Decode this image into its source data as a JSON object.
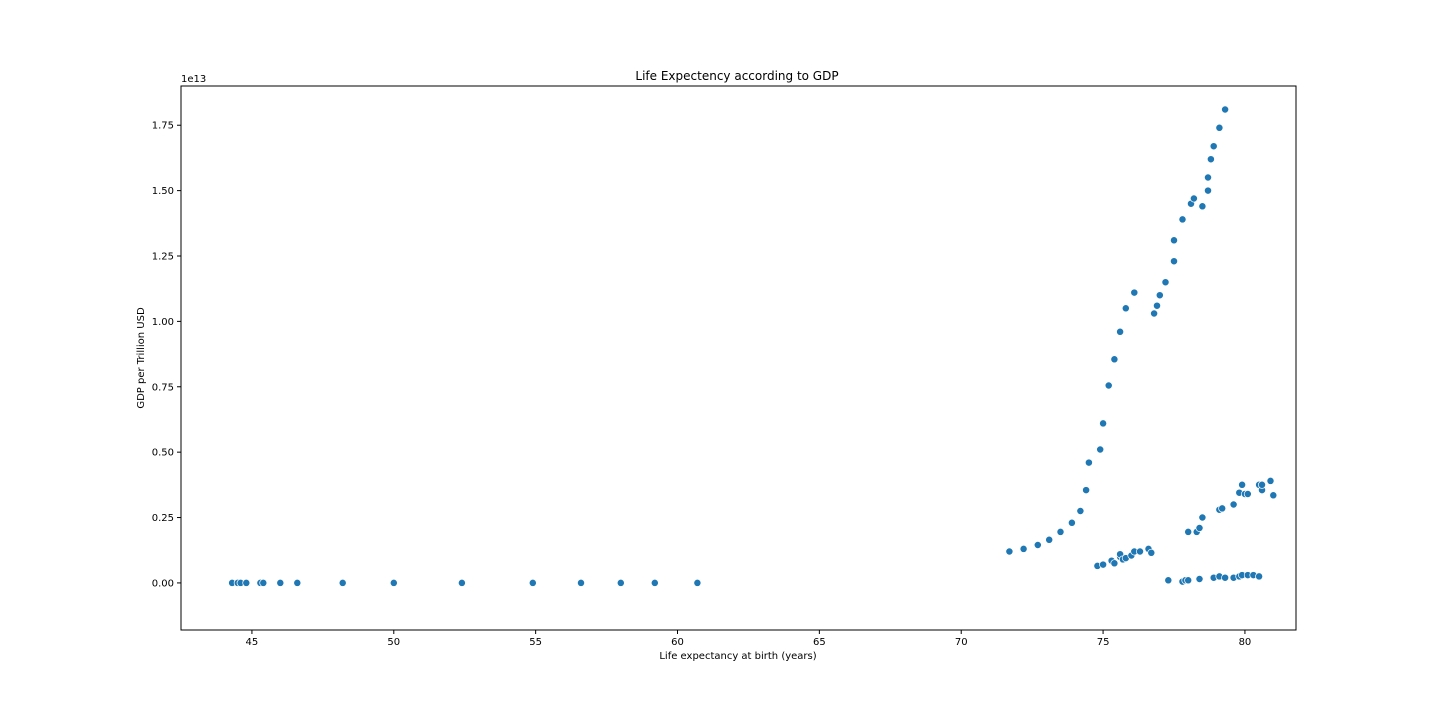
{
  "chart_data": {
    "type": "scatter",
    "title": "Life Expectency according to GDP",
    "xlabel": "Life expectancy at birth (years)",
    "ylabel": "GDP per Trillion USD",
    "y_offset_label": "1e13",
    "xlim": [
      42.5,
      81.8
    ],
    "ylim": [
      -0.18,
      1.9
    ],
    "y_scale_factor": 10000000000000.0,
    "xticks": [
      45,
      50,
      55,
      60,
      65,
      70,
      75,
      80
    ],
    "xtick_labels": [
      "45",
      "50",
      "55",
      "60",
      "65",
      "70",
      "75",
      "80"
    ],
    "yticks": [
      0,
      0.25,
      0.5,
      0.75,
      1.0,
      1.25,
      1.5,
      1.75
    ],
    "ytick_labels": [
      "0.00",
      "0.25",
      "0.50",
      "0.75",
      "1.00",
      "1.25",
      "1.50",
      "1.75"
    ],
    "grid": false,
    "color": "#1f77b4",
    "points": [
      [
        44.3,
        0.0
      ],
      [
        44.5,
        0.0
      ],
      [
        44.6,
        0.0
      ],
      [
        44.8,
        0.0
      ],
      [
        45.3,
        0.0
      ],
      [
        45.4,
        0.0
      ],
      [
        46.0,
        0.0
      ],
      [
        46.6,
        0.0
      ],
      [
        48.2,
        0.0
      ],
      [
        50.0,
        0.0
      ],
      [
        52.4,
        0.0
      ],
      [
        54.9,
        0.0
      ],
      [
        56.6,
        0.0
      ],
      [
        58.0,
        0.0
      ],
      [
        59.2,
        0.0
      ],
      [
        60.7,
        0.0
      ],
      [
        71.7,
        0.12
      ],
      [
        72.2,
        0.13
      ],
      [
        72.7,
        0.145
      ],
      [
        73.1,
        0.165
      ],
      [
        73.5,
        0.195
      ],
      [
        73.9,
        0.23
      ],
      [
        74.2,
        0.275
      ],
      [
        74.4,
        0.355
      ],
      [
        74.5,
        0.46
      ],
      [
        74.9,
        0.51
      ],
      [
        75.0,
        0.61
      ],
      [
        75.2,
        0.755
      ],
      [
        75.4,
        0.855
      ],
      [
        75.6,
        0.96
      ],
      [
        75.8,
        1.05
      ],
      [
        76.1,
        1.11
      ],
      [
        76.8,
        1.03
      ],
      [
        76.9,
        1.06
      ],
      [
        77.0,
        1.1
      ],
      [
        77.2,
        1.15
      ],
      [
        77.5,
        1.23
      ],
      [
        77.5,
        1.31
      ],
      [
        77.8,
        1.39
      ],
      [
        78.1,
        1.45
      ],
      [
        78.2,
        1.47
      ],
      [
        78.5,
        1.44
      ],
      [
        78.7,
        1.5
      ],
      [
        78.7,
        1.55
      ],
      [
        78.8,
        1.62
      ],
      [
        78.9,
        1.67
      ],
      [
        79.1,
        1.74
      ],
      [
        79.3,
        1.81
      ],
      [
        74.8,
        0.065
      ],
      [
        75.0,
        0.07
      ],
      [
        75.3,
        0.085
      ],
      [
        75.4,
        0.075
      ],
      [
        75.6,
        0.1
      ],
      [
        75.6,
        0.11
      ],
      [
        75.7,
        0.09
      ],
      [
        75.8,
        0.095
      ],
      [
        76.0,
        0.105
      ],
      [
        76.1,
        0.12
      ],
      [
        76.3,
        0.12
      ],
      [
        76.6,
        0.13
      ],
      [
        76.7,
        0.115
      ],
      [
        78.0,
        0.195
      ],
      [
        78.3,
        0.195
      ],
      [
        78.4,
        0.21
      ],
      [
        78.5,
        0.25
      ],
      [
        79.1,
        0.28
      ],
      [
        79.2,
        0.285
      ],
      [
        79.6,
        0.3
      ],
      [
        79.8,
        0.345
      ],
      [
        79.9,
        0.375
      ],
      [
        80.0,
        0.34
      ],
      [
        80.1,
        0.34
      ],
      [
        80.5,
        0.375
      ],
      [
        80.6,
        0.355
      ],
      [
        80.6,
        0.375
      ],
      [
        80.9,
        0.39
      ],
      [
        81.0,
        0.335
      ],
      [
        77.3,
        0.01
      ],
      [
        77.8,
        0.005
      ],
      [
        77.9,
        0.01
      ],
      [
        78.0,
        0.01
      ],
      [
        78.4,
        0.015
      ],
      [
        78.9,
        0.02
      ],
      [
        79.1,
        0.025
      ],
      [
        79.3,
        0.02
      ],
      [
        79.6,
        0.02
      ],
      [
        79.8,
        0.025
      ],
      [
        79.9,
        0.03
      ],
      [
        80.1,
        0.03
      ],
      [
        80.3,
        0.03
      ],
      [
        80.5,
        0.025
      ]
    ]
  }
}
